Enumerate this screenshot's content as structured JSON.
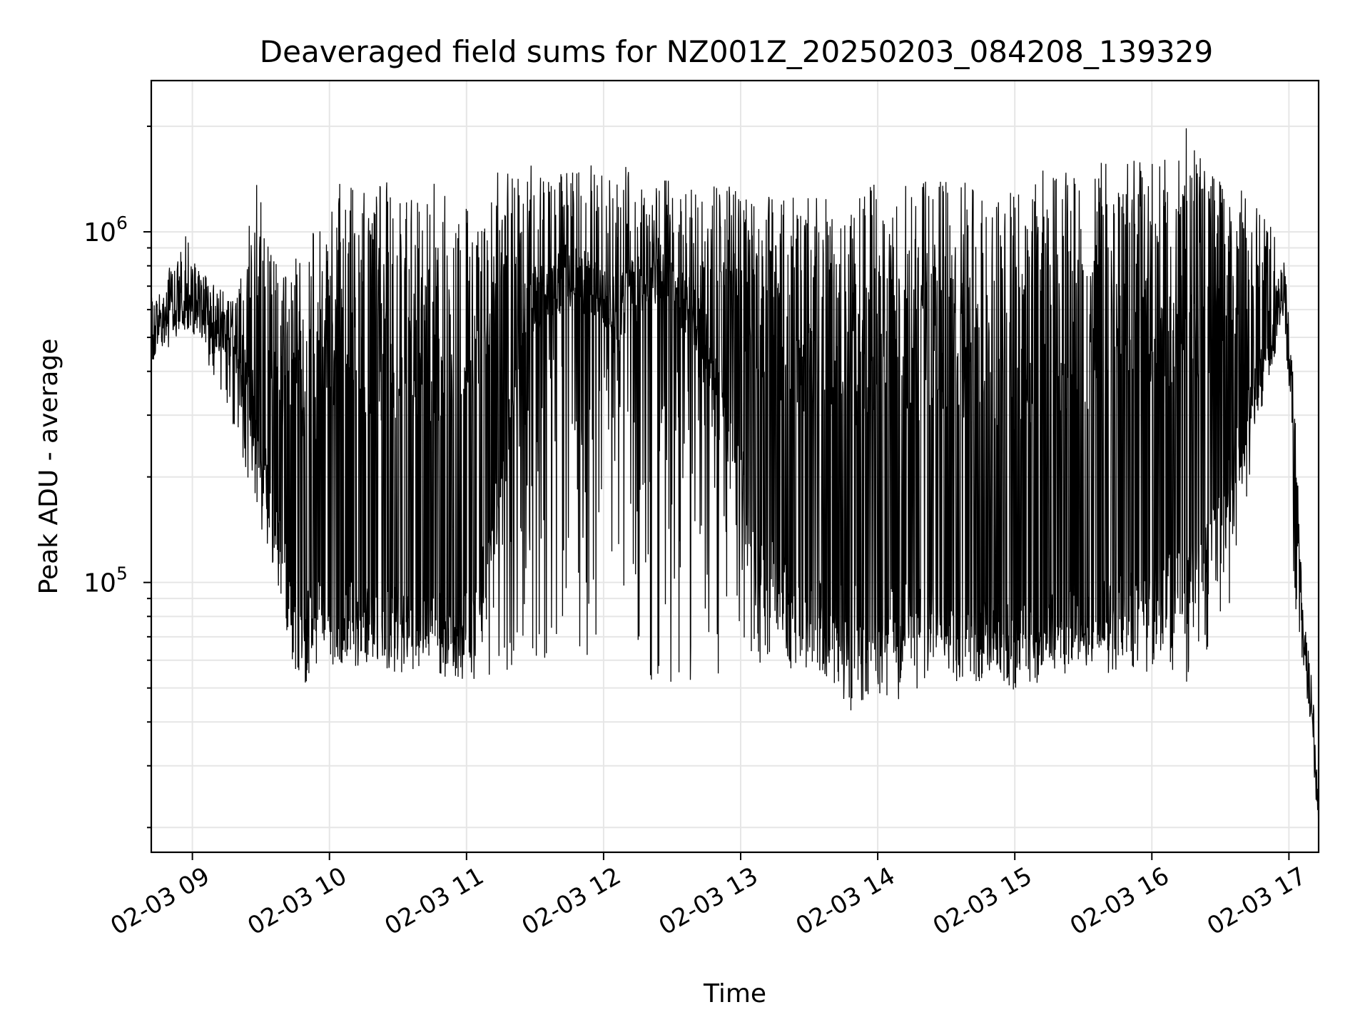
{
  "chart_data": {
    "type": "line",
    "title": "Deaveraged field sums for NZ001Z_20250203_084208_139329",
    "xlabel": "Time",
    "ylabel": "Peak ADU - average",
    "yscale": "log",
    "ylim": [
      17000,
      2700000
    ],
    "xlim": [
      "2025-02-03 08:42",
      "2025-02-03 17:13"
    ],
    "grid": true,
    "line_color": "#000000",
    "x_ticks": [
      {
        "label": "02-03 09",
        "value": "2025-02-03 09:00"
      },
      {
        "label": "02-03 10",
        "value": "2025-02-03 10:00"
      },
      {
        "label": "02-03 11",
        "value": "2025-02-03 11:00"
      },
      {
        "label": "02-03 12",
        "value": "2025-02-03 12:00"
      },
      {
        "label": "02-03 13",
        "value": "2025-02-03 13:00"
      },
      {
        "label": "02-03 14",
        "value": "2025-02-03 14:00"
      },
      {
        "label": "02-03 15",
        "value": "2025-02-03 15:00"
      },
      {
        "label": "02-03 16",
        "value": "2025-02-03 16:00"
      },
      {
        "label": "02-03 17",
        "value": "2025-02-03 17:00"
      }
    ],
    "y_ticks": [
      {
        "base": "10",
        "exp": "5",
        "value": 100000
      },
      {
        "base": "10",
        "exp": "6",
        "value": 1000000
      }
    ],
    "series": [
      {
        "x": [
          "2025-02-03 08:42",
          "2025-02-03 08:50",
          "2025-02-03 08:58",
          "2025-02-03 09:05",
          "2025-02-03 09:12",
          "2025-02-03 09:20",
          "2025-02-03 09:28",
          "2025-02-03 09:35",
          "2025-02-03 09:42",
          "2025-02-03 09:48",
          "2025-02-03 09:55",
          "2025-02-03 10:05",
          "2025-02-03 10:15",
          "2025-02-03 10:25",
          "2025-02-03 10:35",
          "2025-02-03 10:45",
          "2025-02-03 10:55",
          "2025-02-03 11:05",
          "2025-02-03 11:15",
          "2025-02-03 11:25",
          "2025-02-03 11:35",
          "2025-02-03 11:45",
          "2025-02-03 11:55",
          "2025-02-03 12:05",
          "2025-02-03 12:15",
          "2025-02-03 12:25",
          "2025-02-03 12:35",
          "2025-02-03 12:45",
          "2025-02-03 12:55",
          "2025-02-03 13:05",
          "2025-02-03 13:15",
          "2025-02-03 13:25",
          "2025-02-03 13:35",
          "2025-02-03 13:45",
          "2025-02-03 13:55",
          "2025-02-03 14:05",
          "2025-02-03 14:15",
          "2025-02-03 14:25",
          "2025-02-03 14:35",
          "2025-02-03 14:45",
          "2025-02-03 14:55",
          "2025-02-03 15:05",
          "2025-02-03 15:15",
          "2025-02-03 15:25",
          "2025-02-03 15:35",
          "2025-02-03 15:45",
          "2025-02-03 15:55",
          "2025-02-03 16:05",
          "2025-02-03 16:15",
          "2025-02-03 16:25",
          "2025-02-03 16:35",
          "2025-02-03 16:45",
          "2025-02-03 16:52",
          "2025-02-03 16:58",
          "2025-02-03 17:02",
          "2025-02-03 17:06",
          "2025-02-03 17:10",
          "2025-02-03 17:13"
        ],
        "y_base": [
          520000,
          640000,
          650000,
          610000,
          560000,
          480000,
          300000,
          150000,
          100000,
          85000,
          82000,
          80000,
          80000,
          78000,
          78000,
          78000,
          80000,
          90000,
          180000,
          600000,
          700000,
          750000,
          700000,
          600000,
          700000,
          800000,
          650000,
          480000,
          300000,
          150000,
          100000,
          90000,
          85000,
          80000,
          78000,
          78000,
          80000,
          78000,
          76000,
          74000,
          72000,
          72000,
          74000,
          76000,
          80000,
          85000,
          90000,
          95000,
          100000,
          120000,
          200000,
          350000,
          500000,
          700000,
          300000,
          80000,
          45000,
          20000
        ],
        "y_spike_max": [
          600000,
          800000,
          1000000,
          800000,
          750000,
          700000,
          1750000,
          900000,
          750000,
          1000000,
          1000000,
          1400000,
          1400000,
          1400000,
          1400000,
          1400000,
          1400000,
          1450000,
          1500000,
          1550000,
          1550000,
          1550000,
          1550000,
          1550000,
          1550000,
          1450000,
          1400000,
          1350000,
          1400000,
          1300000,
          1350000,
          1350000,
          1300000,
          1100000,
          1400000,
          1300000,
          1400000,
          1400000,
          1400000,
          1400000,
          1400000,
          1300000,
          1600000,
          1550000,
          1600000,
          1600000,
          1600000,
          1600000,
          2150000,
          1450000,
          1400000,
          1200000,
          1050000,
          800000,
          380000,
          90000,
          48000,
          20000
        ],
        "y_spike_min": [
          430000,
          470000,
          500000,
          450000,
          350000,
          250000,
          150000,
          110000,
          65000,
          50000,
          58000,
          55000,
          58000,
          55000,
          55000,
          55000,
          52000,
          50000,
          55000,
          60000,
          60000,
          60000,
          62000,
          70000,
          52000,
          48000,
          50000,
          50000,
          55000,
          55000,
          55000,
          55000,
          55000,
          42000,
          45000,
          45000,
          48000,
          55000,
          52000,
          52000,
          50000,
          46000,
          55000,
          55000,
          55000,
          55000,
          55000,
          56000,
          48000,
          60000,
          90000,
          250000,
          400000,
          650000,
          90000,
          55000,
          36000,
          20000
        ]
      }
    ]
  }
}
